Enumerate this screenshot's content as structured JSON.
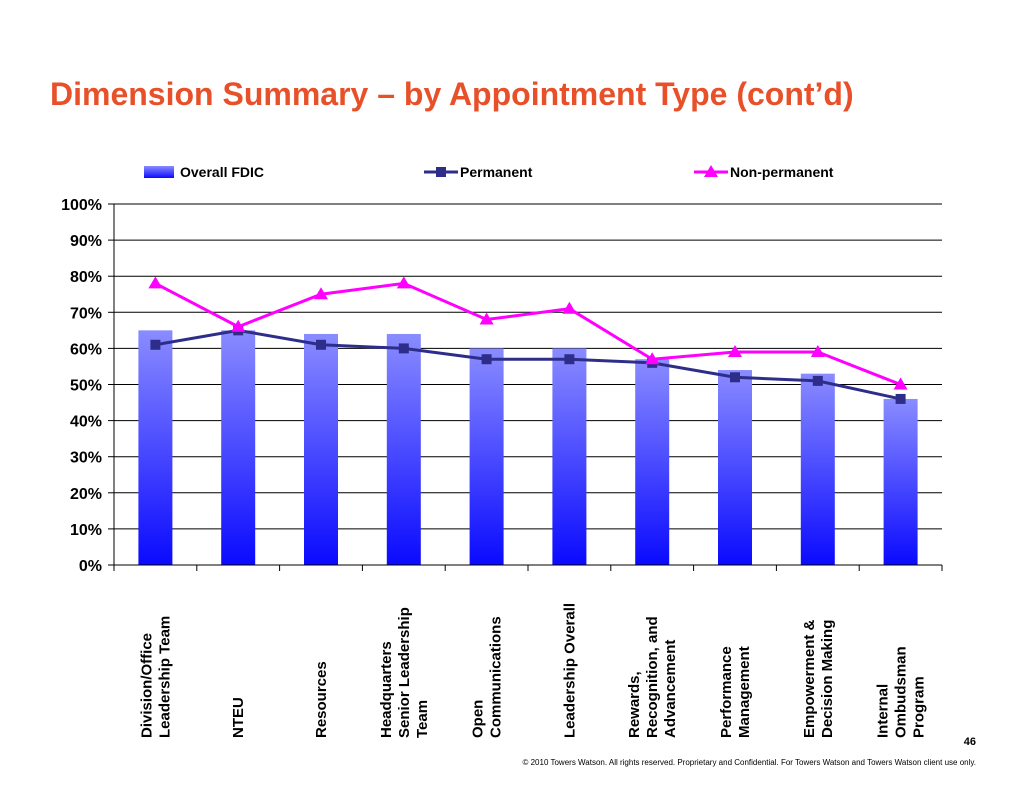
{
  "page": {
    "title": "Dimension Summary – by Appointment Type (cont’d)",
    "page_number": "46",
    "footer": "© 2010 Towers Watson. All rights reserved. Proprietary and Confidential. For Towers Watson and Towers Watson client use only."
  },
  "colors": {
    "title": "#e8502a",
    "bar_top": "#8a8cff",
    "bar_bottom": "#0a0aff",
    "permanent": "#2e2e8a",
    "non_permanent": "#ff00ff"
  },
  "chart_data": {
    "type": "bar",
    "title": "",
    "xlabel": "",
    "ylabel": "",
    "ylim": [
      0,
      100
    ],
    "yticks": [
      "0%",
      "10%",
      "20%",
      "30%",
      "40%",
      "50%",
      "60%",
      "70%",
      "80%",
      "90%",
      "100%"
    ],
    "grid": true,
    "legend_position": "top",
    "categories": [
      [
        "Division/Office",
        "Leadership Team"
      ],
      [
        "NTEU"
      ],
      [
        "Resources"
      ],
      [
        "Headquarters",
        "Senior Leadership",
        "Team"
      ],
      [
        "Open",
        "Communications"
      ],
      [
        "Leadership Overall"
      ],
      [
        "Rewards,",
        "Recognition, and",
        "Advancement"
      ],
      [
        "Performance",
        "Management"
      ],
      [
        "Empowerment &",
        "Decision Making"
      ],
      [
        "Internal",
        "Ombudsman",
        "Program"
      ]
    ],
    "series": [
      {
        "name": "Overall FDIC",
        "kind": "bar",
        "values": [
          65,
          65,
          64,
          64,
          60,
          60,
          57,
          54,
          53,
          46
        ]
      },
      {
        "name": "Permanent",
        "kind": "line",
        "marker": "square",
        "values": [
          61,
          65,
          61,
          60,
          57,
          57,
          56,
          52,
          51,
          46
        ]
      },
      {
        "name": "Non-permanent",
        "kind": "line",
        "marker": "triangle",
        "values": [
          78,
          66,
          75,
          78,
          68,
          71,
          57,
          59,
          59,
          50
        ]
      }
    ]
  }
}
